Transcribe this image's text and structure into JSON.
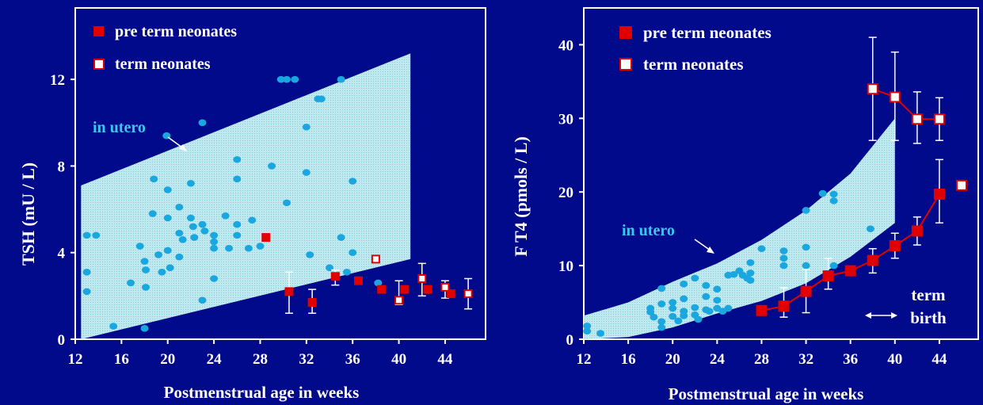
{
  "colors": {
    "background": "#000a8a",
    "border": "#ffffff",
    "axis_text": "#ffffff",
    "band_fill": "#bfe9ee",
    "band_dot": "#7fcfdc",
    "in_utero_point": "#1aa7e0",
    "in_utero_label": "#38c8f0",
    "pre_term": "#e00000",
    "term_fill": "#ffffff",
    "term_stroke": "#e00000",
    "error_bar": "#ffffff"
  },
  "chart_data": [
    {
      "type": "scatter",
      "xlabel": "Postmenstrual age in weeks",
      "ylabel": "TSH (mU / L)",
      "xticks": [
        12,
        16,
        20,
        24,
        28,
        32,
        36,
        40,
        44
      ],
      "yticks": [
        0,
        4,
        8,
        12
      ],
      "xlim": [
        12,
        47.5
      ],
      "ylim": [
        0,
        15.3
      ],
      "legend": [
        {
          "label": "pre term neonates",
          "marker": "filled-square"
        },
        {
          "label": "term neonates",
          "marker": "open-square"
        }
      ],
      "band_label": "in utero",
      "band": {
        "x": [
          12.5,
          41
        ],
        "upper": [
          7.1,
          13.2
        ],
        "lower": [
          0,
          3.7
        ]
      },
      "in_utero_points": [
        [
          13.0,
          4.8
        ],
        [
          13.8,
          4.8
        ],
        [
          13.0,
          3.1
        ],
        [
          13.0,
          2.2
        ],
        [
          15.3,
          0.6
        ],
        [
          16.8,
          2.6
        ],
        [
          17.6,
          4.3
        ],
        [
          18.0,
          3.6
        ],
        [
          18.1,
          3.2
        ],
        [
          18.1,
          2.4
        ],
        [
          18.0,
          0.5
        ],
        [
          18.7,
          5.8
        ],
        [
          18.8,
          7.4
        ],
        [
          19.2,
          3.9
        ],
        [
          19.5,
          3.1
        ],
        [
          19.9,
          9.4
        ],
        [
          20.0,
          6.9
        ],
        [
          20.0,
          5.6
        ],
        [
          20.0,
          4.1
        ],
        [
          20.2,
          3.3
        ],
        [
          21.0,
          6.1
        ],
        [
          21.0,
          4.9
        ],
        [
          21.0,
          3.8
        ],
        [
          21.3,
          4.6
        ],
        [
          22.0,
          7.2
        ],
        [
          22.0,
          5.6
        ],
        [
          22.2,
          5.2
        ],
        [
          22.3,
          4.7
        ],
        [
          23.0,
          10.0
        ],
        [
          23.0,
          5.3
        ],
        [
          23.2,
          5.0
        ],
        [
          23.0,
          1.8
        ],
        [
          24.0,
          4.8
        ],
        [
          24.0,
          4.5
        ],
        [
          24.0,
          4.2
        ],
        [
          24.0,
          2.8
        ],
        [
          25.0,
          5.7
        ],
        [
          25.3,
          4.2
        ],
        [
          26.0,
          8.3
        ],
        [
          26.0,
          7.4
        ],
        [
          26.0,
          5.3
        ],
        [
          26.0,
          4.8
        ],
        [
          27.0,
          4.2
        ],
        [
          27.3,
          5.5
        ],
        [
          28.0,
          4.3
        ],
        [
          29.0,
          8.0
        ],
        [
          29.8,
          12.0
        ],
        [
          30.3,
          12.0
        ],
        [
          30.3,
          6.3
        ],
        [
          31.0,
          12.0
        ],
        [
          32.0,
          9.8
        ],
        [
          32.0,
          7.7
        ],
        [
          32.3,
          3.9
        ],
        [
          33.0,
          11.1
        ],
        [
          33.3,
          11.1
        ],
        [
          34.0,
          3.3
        ],
        [
          35.0,
          12.0
        ],
        [
          35.0,
          4.7
        ],
        [
          35.5,
          3.1
        ],
        [
          36.0,
          7.3
        ],
        [
          36.0,
          4.0
        ],
        [
          38.2,
          2.6
        ]
      ],
      "pre_term": [
        {
          "x": 28.5,
          "y": 4.7
        },
        {
          "x": 30.5,
          "y": 2.2,
          "err": [
            1.2,
            3.1
          ]
        },
        {
          "x": 32.5,
          "y": 1.7,
          "err": [
            1.2,
            2.3
          ]
        },
        {
          "x": 34.5,
          "y": 2.9,
          "err": [
            2.5,
            3.2
          ]
        },
        {
          "x": 36.5,
          "y": 2.7
        },
        {
          "x": 38.5,
          "y": 2.3
        },
        {
          "x": 40.5,
          "y": 2.3
        },
        {
          "x": 42.5,
          "y": 2.3
        },
        {
          "x": 44.5,
          "y": 2.1
        }
      ],
      "term": [
        {
          "x": 38.0,
          "y": 3.7
        },
        {
          "x": 40.0,
          "y": 1.8,
          "err": [
            1.6,
            2.7
          ]
        },
        {
          "x": 42.0,
          "y": 2.8,
          "err": [
            2.0,
            3.5
          ]
        },
        {
          "x": 44.0,
          "y": 2.4,
          "err": [
            1.9,
            2.7
          ]
        },
        {
          "x": 46.0,
          "y": 2.1,
          "err": [
            1.4,
            2.8
          ]
        }
      ]
    },
    {
      "type": "line",
      "xlabel": "Postmenstrual age in weeks",
      "ylabel": "F T4 (pmols / L)",
      "xticks": [
        12,
        16,
        20,
        24,
        28,
        32,
        36,
        40,
        44
      ],
      "yticks": [
        0,
        10,
        20,
        30,
        40
      ],
      "xlim": [
        12,
        47.5
      ],
      "ylim": [
        0,
        45
      ],
      "legend": [
        {
          "label": "pre term neonates",
          "marker": "filled-square"
        },
        {
          "label": "term neonates",
          "marker": "open-square"
        }
      ],
      "band_label": "in utero",
      "annotation": [
        "term",
        "birth"
      ],
      "band": {
        "x": [
          12,
          16,
          20,
          24,
          28,
          32,
          36,
          40
        ],
        "upper": [
          3.2,
          5.0,
          7.8,
          10.3,
          13.5,
          17.5,
          22.5,
          30.0
        ],
        "lower": [
          0.0,
          0.3,
          1.6,
          3.5,
          5.2,
          7.6,
          11.2,
          15.8
        ]
      },
      "in_utero_points": [
        [
          12.3,
          1.8
        ],
        [
          12.3,
          1.1
        ],
        [
          13.5,
          0.8
        ],
        [
          18.0,
          4.2
        ],
        [
          18.0,
          3.7
        ],
        [
          18.3,
          3.0
        ],
        [
          19.0,
          6.9
        ],
        [
          19.0,
          4.8
        ],
        [
          19.0,
          2.4
        ],
        [
          19.0,
          1.6
        ],
        [
          20.0,
          5.0
        ],
        [
          20.0,
          4.2
        ],
        [
          20.0,
          3.1
        ],
        [
          20.5,
          2.5
        ],
        [
          21.0,
          7.5
        ],
        [
          21.0,
          5.5
        ],
        [
          21.0,
          3.8
        ],
        [
          21.0,
          3.2
        ],
        [
          22.0,
          8.3
        ],
        [
          22.0,
          4.3
        ],
        [
          22.0,
          3.3
        ],
        [
          22.3,
          2.7
        ],
        [
          23.0,
          7.3
        ],
        [
          23.0,
          5.8
        ],
        [
          23.0,
          4.0
        ],
        [
          23.3,
          3.8
        ],
        [
          24.0,
          6.8
        ],
        [
          24.0,
          5.3
        ],
        [
          24.0,
          4.2
        ],
        [
          24.5,
          3.8
        ],
        [
          25.0,
          8.7
        ],
        [
          25.0,
          4.2
        ],
        [
          25.5,
          8.8
        ],
        [
          26.0,
          9.3
        ],
        [
          26.3,
          8.7
        ],
        [
          26.7,
          8.3
        ],
        [
          27.0,
          10.4
        ],
        [
          27.0,
          9.0
        ],
        [
          27.0,
          8.0
        ],
        [
          28.0,
          12.3
        ],
        [
          30.0,
          12.0
        ],
        [
          30.0,
          11.0
        ],
        [
          30.0,
          10.0
        ],
        [
          32.0,
          17.5
        ],
        [
          32.0,
          12.5
        ],
        [
          32.0,
          10.0
        ],
        [
          33.5,
          19.8
        ],
        [
          34.5,
          19.7
        ],
        [
          34.5,
          18.8
        ],
        [
          34.5,
          10.0
        ],
        [
          37.8,
          15.0
        ]
      ],
      "pre_term": [
        {
          "x": 28,
          "y": 3.9
        },
        {
          "x": 30,
          "y": 4.5,
          "err": [
            3.0,
            7.0
          ]
        },
        {
          "x": 32,
          "y": 6.5,
          "err": [
            3.6,
            9.5
          ]
        },
        {
          "x": 34,
          "y": 8.6,
          "err": [
            6.8,
            11.0
          ]
        },
        {
          "x": 36,
          "y": 9.3
        },
        {
          "x": 38,
          "y": 10.7,
          "err": [
            9.0,
            12.3
          ]
        },
        {
          "x": 40,
          "y": 12.7,
          "err": [
            11.0,
            14.4
          ]
        },
        {
          "x": 42,
          "y": 14.7,
          "err": [
            12.8,
            16.6
          ]
        },
        {
          "x": 44,
          "y": 19.7,
          "err": [
            15.8,
            24.4
          ]
        }
      ],
      "term": [
        {
          "x": 38,
          "y": 34.0,
          "err": [
            27.0,
            41.0
          ]
        },
        {
          "x": 40,
          "y": 32.9,
          "err": [
            27.0,
            39.0
          ]
        },
        {
          "x": 42,
          "y": 29.9,
          "err": [
            26.6,
            33.6
          ]
        },
        {
          "x": 44,
          "y": 29.9,
          "err": [
            27.0,
            32.8
          ]
        },
        {
          "x": 46,
          "y": 20.9
        }
      ]
    }
  ]
}
